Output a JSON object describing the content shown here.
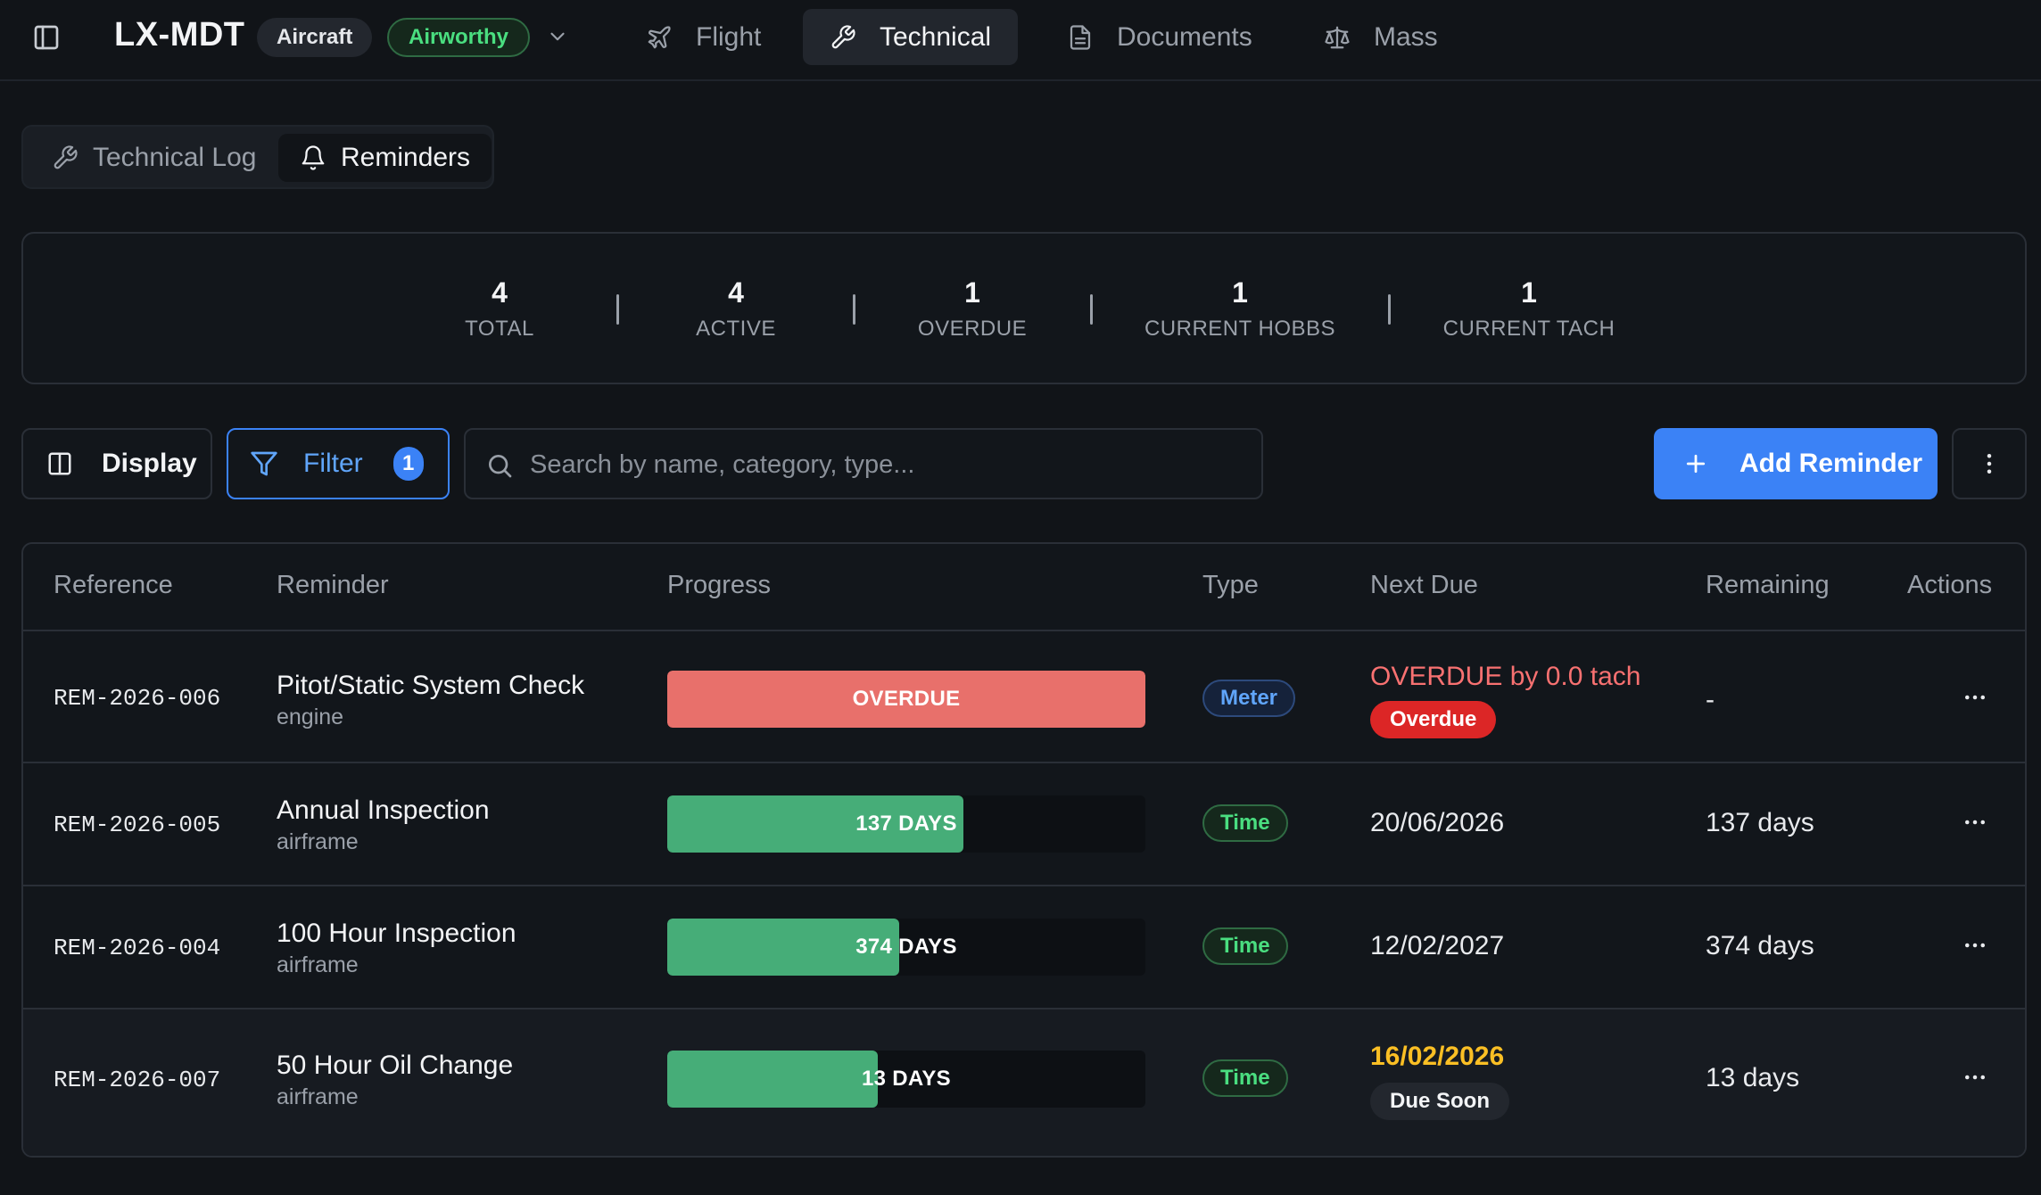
{
  "header": {
    "registration": "LX-MDT",
    "aircraft_label": "Aircraft",
    "status_label": "Airworthy",
    "tabs": [
      {
        "label": "Flight",
        "icon": "plane-icon"
      },
      {
        "label": "Technical",
        "icon": "wrench-icon"
      },
      {
        "label": "Documents",
        "icon": "document-icon"
      },
      {
        "label": "Mass",
        "icon": "scale-icon"
      }
    ],
    "active_tab": "Technical"
  },
  "subtabs": [
    {
      "label": "Technical Log",
      "icon": "wrench-icon"
    },
    {
      "label": "Reminders",
      "icon": "bell-icon"
    }
  ],
  "stats": [
    {
      "value": "4",
      "label": "TOTAL"
    },
    {
      "value": "4",
      "label": "ACTIVE"
    },
    {
      "value": "1",
      "label": "OVERDUE"
    },
    {
      "value": "1",
      "label": "CURRENT HOBBS"
    },
    {
      "value": "1",
      "label": "CURRENT TACH"
    }
  ],
  "toolbar": {
    "display_label": "Display",
    "filter_label": "Filter",
    "filter_count": "1",
    "search_placeholder": "Search by name, category, type...",
    "add_label": "Add Reminder"
  },
  "table": {
    "columns": [
      "Reference",
      "Reminder",
      "Progress",
      "Type",
      "Next Due",
      "Remaining",
      "Actions"
    ],
    "rows": [
      {
        "reference": "REM-2026-006",
        "name": "Pitot/Static System Check",
        "category": "engine",
        "progress_label": "OVERDUE",
        "progress_fraction": 1.0,
        "progress_color": "#e8706b",
        "type": "Meter",
        "next_due": "OVERDUE by 0.0 tach",
        "next_due_color": "#f87171",
        "due_badge": "Overdue",
        "remaining": "-"
      },
      {
        "reference": "REM-2026-005",
        "name": "Annual Inspection",
        "category": "airframe",
        "progress_label": "137 DAYS",
        "progress_fraction": 0.62,
        "progress_color": "#46ad78",
        "type": "Time",
        "next_due": "20/06/2026",
        "next_due_color": "#e8eaed",
        "due_badge": "",
        "remaining": "137 days"
      },
      {
        "reference": "REM-2026-004",
        "name": "100 Hour Inspection",
        "category": "airframe",
        "progress_label": "374 DAYS",
        "progress_fraction": 0.485,
        "progress_color": "#46ad78",
        "type": "Time",
        "next_due": "12/02/2027",
        "next_due_color": "#e8eaed",
        "due_badge": "",
        "remaining": "374 days"
      },
      {
        "reference": "REM-2026-007",
        "name": "50 Hour Oil Change",
        "category": "airframe",
        "progress_label": "13 DAYS",
        "progress_fraction": 0.44,
        "progress_color": "#46ad78",
        "type": "Time",
        "next_due": "16/02/2026",
        "next_due_color": "#fbbf24",
        "due_badge": "Due Soon",
        "remaining": "13 days"
      }
    ]
  },
  "colors": {
    "accent": "#3b82f6",
    "success": "#4ade80",
    "danger": "#dc2626",
    "warning": "#fbbf24"
  }
}
